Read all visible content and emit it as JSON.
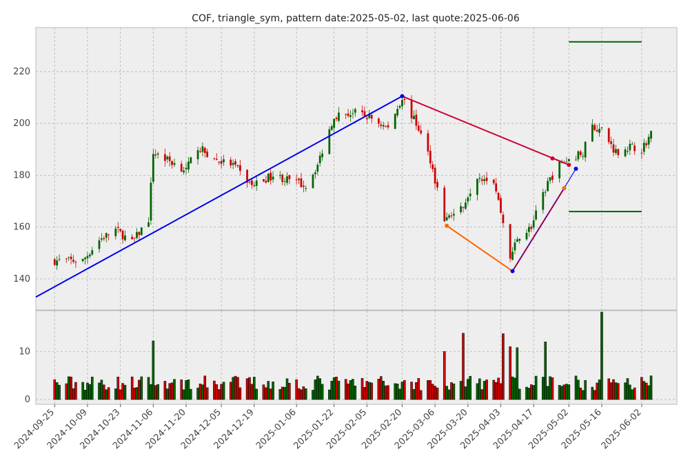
{
  "chart_data": [
    {
      "type": "candlestick",
      "title": "COF, triangle_sym, pattern date:2025-05-02, last quote:2025-06-06",
      "ylim": [
        128,
        237
      ],
      "xlim": [
        "2024-09-17",
        "2025-06-17"
      ],
      "y_ticks": [
        140,
        160,
        180,
        200,
        220
      ],
      "grid": true,
      "colors": {
        "up": "#006400",
        "down": "#cc0000",
        "background": "#eeeeee",
        "grid": "#b0b0b0"
      },
      "prices": {
        "2024-09-25": 147,
        "2024-10-07": 147,
        "2024-10-14": 155,
        "2024-10-21": 159,
        "2024-10-28": 154,
        "2024-11-04": 163,
        "2024-11-06": 189,
        "2024-11-12": 186,
        "2024-11-20": 182,
        "2024-11-25": 191,
        "2024-12-02": 186,
        "2024-12-10": 184,
        "2024-12-18": 176,
        "2024-12-27": 180,
        "2025-01-10": 176,
        "2025-01-15": 184,
        "2025-01-22": 203,
        "2025-01-31": 204,
        "2025-02-07": 202,
        "2025-02-14": 198,
        "2025-02-20": 210,
        "2025-02-27": 198,
        "2025-03-04": 186,
        "2025-03-10": 163,
        "2025-03-17": 167,
        "2025-03-24": 180,
        "2025-03-31": 178,
        "2025-04-03": 166,
        "2025-04-07": 148,
        "2025-04-10": 156,
        "2025-04-16": 160,
        "2025-04-23": 177,
        "2025-04-28": 184,
        "2025-05-02": 186,
        "2025-05-08": 189,
        "2025-05-12": 199,
        "2025-05-16": 197,
        "2025-05-22": 189,
        "2025-05-28": 191,
        "2025-06-02": 190,
        "2025-06-06": 196
      },
      "lines": [
        {
          "color": "#0000ee",
          "points": [
            [
              "2024-09-17",
              133
            ],
            [
              "2025-02-20",
              210.5
            ]
          ]
        },
        {
          "color": "#cc0033",
          "points": [
            [
              "2025-02-20",
              210.5
            ],
            [
              "2025-05-02",
              184
            ]
          ]
        },
        {
          "color": "#ff6600",
          "points": [
            [
              "2025-03-11",
              160.5
            ],
            [
              "2025-04-08",
              143
            ]
          ]
        },
        {
          "color": "#cc0033",
          "points": [
            [
              "2025-04-08",
              143
            ],
            [
              "2025-04-30",
              175
            ]
          ]
        },
        {
          "color": "#0000ee",
          "dotted": true,
          "points": [
            [
              "2025-04-08",
              143
            ],
            [
              "2025-05-05",
              182.5
            ]
          ]
        },
        {
          "color": "#0000ee",
          "dotted": true,
          "points": [
            [
              "2025-04-30",
              175
            ],
            [
              "2025-05-05",
              182.5
            ]
          ]
        },
        {
          "color": "#006400",
          "points": [
            [
              "2025-05-02",
              231.5
            ],
            [
              "2025-06-02",
              231.5
            ]
          ]
        },
        {
          "color": "#006400",
          "points": [
            [
              "2025-05-02",
              166
            ],
            [
              "2025-06-02",
              166
            ]
          ]
        }
      ],
      "markers": [
        {
          "date": "2025-02-20",
          "value": 210.5,
          "color": "#0000ee"
        },
        {
          "date": "2025-03-11",
          "value": 160.5,
          "color": "#ff6600"
        },
        {
          "date": "2025-04-08",
          "value": 143,
          "color": "#0000ee"
        },
        {
          "date": "2025-04-30",
          "value": 175,
          "color": "#ff6600"
        },
        {
          "date": "2025-04-25",
          "value": 186.5,
          "color": "#cc0033"
        },
        {
          "date": "2025-05-02",
          "value": 184,
          "color": "#cc0033"
        },
        {
          "date": "2025-05-05",
          "value": 182.5,
          "color": "#0000ee"
        }
      ]
    },
    {
      "type": "bar",
      "ylim": [
        -1,
        18.5
      ],
      "y_ticks": [
        0,
        10
      ],
      "x_ticks": [
        "2024-09-25",
        "2024-10-09",
        "2024-10-23",
        "2024-11-06",
        "2024-11-20",
        "2024-12-05",
        "2024-12-19",
        "2025-01-06",
        "2025-01-22",
        "2025-02-05",
        "2025-02-20",
        "2025-03-06",
        "2025-03-20",
        "2025-04-03",
        "2025-04-17",
        "2025-05-02",
        "2025-05-16",
        "2025-06-02"
      ],
      "volume_spikes": {
        "2024-11-06": 12.2,
        "2025-03-10": 10,
        "2025-03-18": 13.8,
        "2025-04-04": 13.7,
        "2025-04-07": 11,
        "2025-04-10": 10.8,
        "2025-04-22": 12,
        "2025-05-16": 18.2
      }
    }
  ]
}
